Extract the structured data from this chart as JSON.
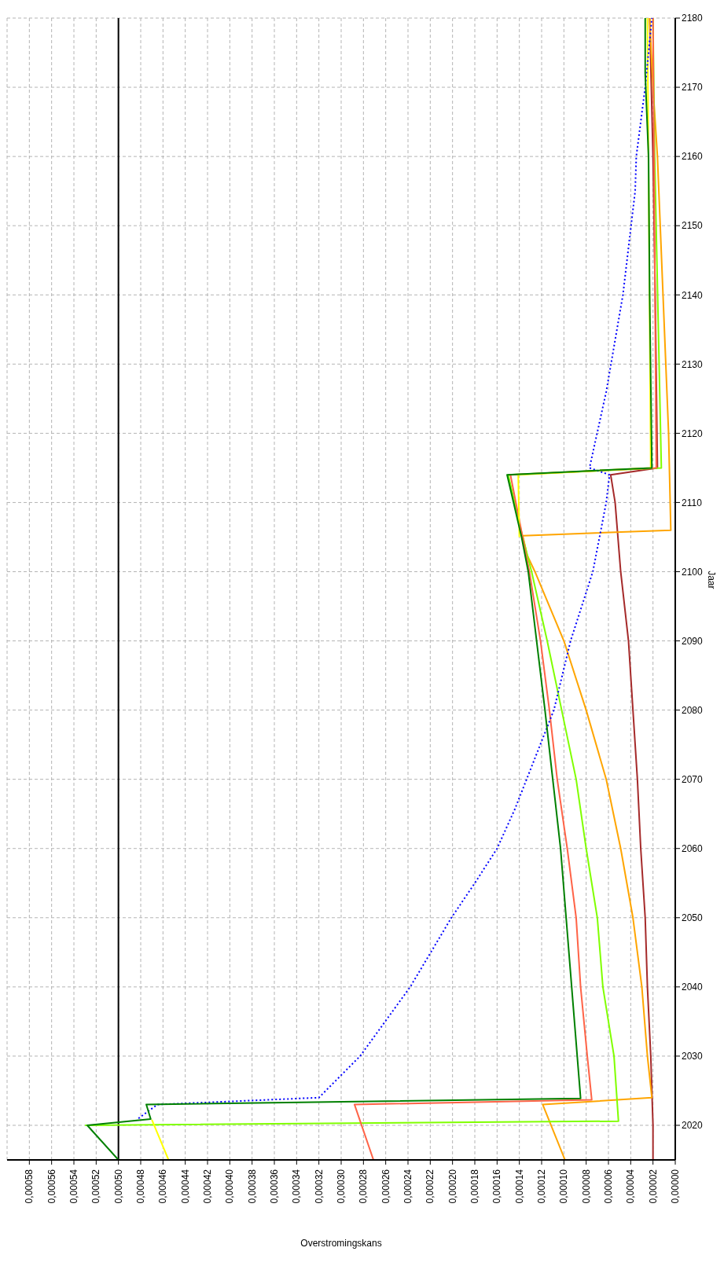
{
  "chart_data": {
    "type": "line",
    "xlabel": "Overstromingskans",
    "ylabel": "Jaar",
    "ylim": [
      2015,
      2180
    ],
    "yticks": [
      2020,
      2030,
      2040,
      2050,
      2060,
      2070,
      2080,
      2090,
      2100,
      2110,
      2120,
      2130,
      2140,
      2150,
      2160,
      2170,
      2180
    ],
    "xlim": [
      0.0006,
      0
    ],
    "xticks": [
      {
        "value": 0,
        "label": "0,00000"
      },
      {
        "value": 2e-05,
        "label": "0,00002"
      },
      {
        "value": 4e-05,
        "label": "0,00004"
      },
      {
        "value": 6e-05,
        "label": "0,00006"
      },
      {
        "value": 8e-05,
        "label": "0,00008"
      },
      {
        "value": 0.0001,
        "label": "0,00010"
      },
      {
        "value": 0.00012,
        "label": "0,00012"
      },
      {
        "value": 0.00014,
        "label": "0,00014"
      },
      {
        "value": 0.00016,
        "label": "0,00016"
      },
      {
        "value": 0.00018,
        "label": "0,00018"
      },
      {
        "value": 0.0002,
        "label": "0,00020"
      },
      {
        "value": 0.00022,
        "label": "0,00022"
      },
      {
        "value": 0.00024,
        "label": "0,00024"
      },
      {
        "value": 0.00026,
        "label": "0,00026"
      },
      {
        "value": 0.00028,
        "label": "0,00028"
      },
      {
        "value": 0.0003,
        "label": "0,00030"
      },
      {
        "value": 0.00032,
        "label": "0,00032"
      },
      {
        "value": 0.00034,
        "label": "0,00034"
      },
      {
        "value": 0.00036,
        "label": "0,00036"
      },
      {
        "value": 0.00038,
        "label": "0,00038"
      },
      {
        "value": 0.0004,
        "label": "0,00040"
      },
      {
        "value": 0.00042,
        "label": "0,00042"
      },
      {
        "value": 0.00044,
        "label": "0,00044"
      },
      {
        "value": 0.00046,
        "label": "0,00046"
      },
      {
        "value": 0.00048,
        "label": "0,00048"
      },
      {
        "value": 0.0005,
        "label": "0,00050"
      },
      {
        "value": 0.00052,
        "label": "0,00052"
      },
      {
        "value": 0.00054,
        "label": "0,00054"
      },
      {
        "value": 0.00056,
        "label": "0,00056"
      },
      {
        "value": 0.00058,
        "label": "0,00058"
      }
    ],
    "grid": true,
    "marker": "none",
    "line_style": "solid",
    "ref_lines": [
      {
        "axis": "x",
        "value": 0.0005,
        "color": "#000000"
      }
    ],
    "series": [
      {
        "color": "#a52a2a",
        "values": [
          2015,
          2020,
          2030,
          2040,
          2050,
          2060,
          2070,
          2080,
          2090,
          2100,
          2110,
          2114,
          2115,
          2140,
          2160,
          2180
        ],
        "x": [
          2e-05,
          2e-05,
          2.2e-05,
          2.5e-05,
          2.7e-05,
          3.1e-05,
          3.4e-05,
          3.8e-05,
          4.2e-05,
          4.9e-05,
          5.4e-05,
          5.8e-05,
          1.6e-05,
          1.8e-05,
          2e-05,
          2.3e-05
        ]
      },
      {
        "color": "#ffa500",
        "values": [
          2015,
          2023,
          2024,
          2030,
          2040,
          2050,
          2060,
          2070,
          2080,
          2090,
          2100,
          2102.4,
          2105.2,
          2106,
          2120,
          2160,
          2170,
          2180
        ],
        "x": [
          9.9e-05,
          0.000119,
          2.1e-05,
          2.5e-05,
          3e-05,
          3.8e-05,
          4.9e-05,
          6.2e-05,
          8e-05,
          0.0001,
          0.000126,
          0.000133,
          0.000137,
          4e-06,
          6e-06,
          1.6e-05,
          2e-05,
          2.3e-05
        ]
      },
      {
        "color": "#80ff00",
        "values": [
          2020,
          2020.6,
          2030,
          2040,
          2050,
          2060,
          2070,
          2080,
          2090,
          2100,
          2105,
          2114,
          2115,
          2160,
          2180
        ],
        "x": [
          0.00053,
          5.1e-05,
          5.5e-05,
          6.5e-05,
          7e-05,
          8e-05,
          8.9e-05,
          0.000102,
          0.000115,
          0.000129,
          0.000137,
          0.00015,
          1.25e-05,
          1.85e-05,
          2e-05
        ]
      },
      {
        "color": "#ff6347",
        "values": [
          2015,
          2023,
          2023.7,
          2030,
          2040,
          2050,
          2060,
          2070,
          2080,
          2090,
          2100,
          2114,
          2115,
          2180
        ],
        "x": [
          0.000271,
          0.000288,
          7.5e-05,
          7.9e-05,
          8.5e-05,
          8.9e-05,
          9.7e-05,
          0.000106,
          0.000113,
          0.000121,
          0.000131,
          0.000148,
          1.7e-05,
          2e-05
        ]
      },
      {
        "color": "#ffff00",
        "values": [
          2015,
          2020.8,
          null,
          2105,
          2114,
          2115,
          2180
        ],
        "x": [
          0.000455,
          0.00047,
          null,
          0.00014,
          0.000141,
          2.2e-05,
          2.5e-05
        ]
      },
      {
        "color": "#0000ff",
        "line_style": "dotted",
        "values": [
          2021,
          2023,
          2024,
          2030,
          2040,
          2050,
          2055,
          2060,
          2065.7,
          2080,
          2090,
          2100,
          2110,
          2114,
          2115,
          2126,
          2140,
          2155,
          2160,
          2170,
          2180
        ],
        "x": [
          0.000482,
          0.000465,
          0.00032,
          0.000283,
          0.000238,
          0.000201,
          0.00018,
          0.00016,
          0.000144,
          0.000109,
          9.4e-05,
          7.4e-05,
          6.2e-05,
          5.9e-05,
          7.7e-05,
          6.2e-05,
          4.7e-05,
          3.6e-05,
          3.5e-05,
          2.7e-05,
          2.1e-05
        ]
      },
      {
        "color": "#008000",
        "values": [
          2015,
          2020,
          2020.9,
          2023,
          2023.9,
          2050,
          2060,
          2080,
          2100,
          2105,
          2114,
          2115,
          2140,
          2160,
          2172,
          2180
        ],
        "x": [
          0.0005,
          0.000528,
          0.000471,
          0.000475,
          8.5e-05,
          9.8e-05,
          0.000103,
          0.000117,
          0.000132,
          0.000138,
          0.000151,
          2.1e-05,
          2.3e-05,
          2.4e-05,
          2.7e-05,
          2.7e-05
        ]
      }
    ]
  }
}
